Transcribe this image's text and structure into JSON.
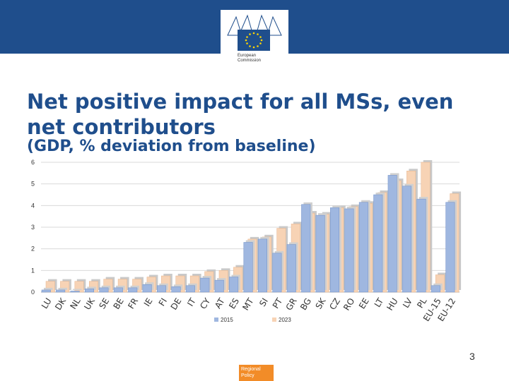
{
  "header": {
    "logo_line1": "European",
    "logo_line2": "Commission",
    "brand_color": "#1f4e8c"
  },
  "slide": {
    "title": "Net positive impact for all MSs, even net contributors",
    "subtitle": "(GDP, % deviation from baseline)",
    "page_number": "3",
    "footer_label_line1": "Regional",
    "footer_label_line2": "Policy",
    "footer_color": "#f28c28"
  },
  "chart_data": {
    "type": "bar",
    "title": "",
    "xlabel": "",
    "ylabel": "",
    "ylim": [
      0,
      6
    ],
    "yticks": [
      "0",
      "1",
      "2",
      "3",
      "4",
      "5",
      "6"
    ],
    "grid": true,
    "legend_position": "bottom-center",
    "categories": [
      "LU",
      "DK",
      "NL",
      "UK",
      "SE",
      "BE",
      "FR",
      "IE",
      "FI",
      "DE",
      "IT",
      "CY",
      "AT",
      "ES",
      "MT",
      "SI",
      "PT",
      "GR",
      "BG",
      "SK",
      "CZ",
      "RO",
      "EE",
      "LT",
      "HU",
      "LV",
      "PL",
      "EU-15",
      "EU-12"
    ],
    "series": [
      {
        "name": "2015",
        "color": "#9fb7e0",
        "values": [
          0.1,
          0.1,
          0.05,
          0.15,
          0.2,
          0.2,
          0.2,
          0.35,
          0.3,
          0.25,
          0.3,
          0.65,
          0.55,
          0.7,
          2.3,
          2.45,
          1.8,
          2.2,
          4.05,
          3.55,
          3.9,
          3.85,
          4.15,
          4.5,
          5.4,
          4.9,
          4.3,
          0.3,
          4.15
        ]
      },
      {
        "name": "2023",
        "color": "#f7d3b5",
        "values": [
          0.5,
          0.5,
          0.5,
          0.5,
          0.6,
          0.6,
          0.6,
          0.7,
          0.75,
          0.75,
          0.75,
          0.95,
          1.0,
          1.15,
          2.45,
          2.55,
          2.95,
          3.15,
          3.65,
          3.6,
          3.9,
          3.95,
          4.1,
          4.6,
          5.15,
          5.6,
          6.0,
          0.8,
          4.55
        ]
      }
    ]
  }
}
